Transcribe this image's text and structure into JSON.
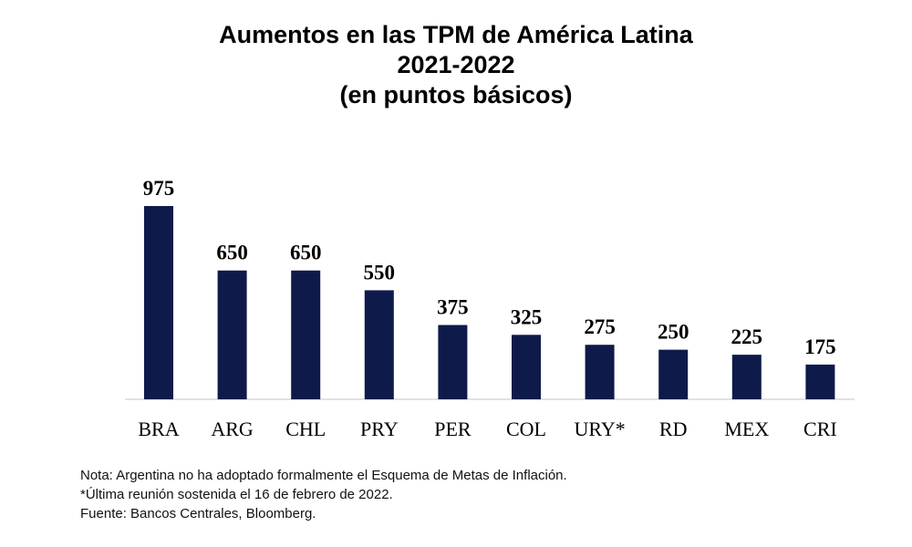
{
  "chart_data": {
    "type": "bar",
    "title": "Aumentos en las TPM de América Latina",
    "subtitle": [
      "2021-2022",
      "(en puntos básicos)"
    ],
    "categories": [
      "BRA",
      "ARG",
      "CHL",
      "PRY",
      "PER",
      "COL",
      "URY*",
      "RD",
      "MEX",
      "CRI"
    ],
    "values": [
      975,
      650,
      650,
      550,
      375,
      325,
      275,
      250,
      225,
      175
    ],
    "ylim": [
      0,
      975
    ],
    "xlabel": "",
    "ylabel": "",
    "grid": false,
    "legend": "none",
    "data_labels": true,
    "bar_color": "#0e1a4a"
  },
  "notes": [
    "Nota: Argentina no ha adoptado formalmente el Esquema de Metas de Inflación.",
    "*Última reunión sostenida el 16 de febrero de 2022.",
    "Fuente: Bancos Centrales, Bloomberg."
  ]
}
